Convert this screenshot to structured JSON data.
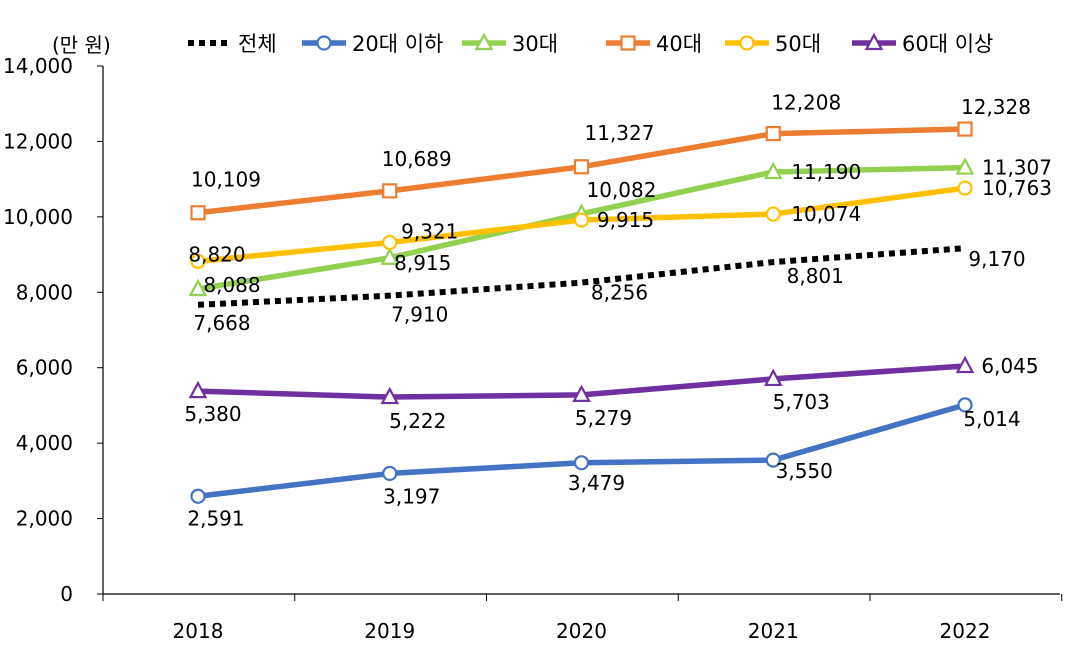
{
  "chart_data": {
    "type": "line",
    "title": "",
    "unit_label": "(만 원)",
    "xlabel": "",
    "ylabel": "",
    "x": [
      "2018",
      "2019",
      "2020",
      "2021",
      "2022"
    ],
    "ylim": [
      0,
      14000
    ],
    "yticks": [
      "0",
      "2,000",
      "4,000",
      "6,000",
      "8,000",
      "10,000",
      "12,000",
      "14,000"
    ],
    "ytick_values": [
      0,
      2000,
      4000,
      6000,
      8000,
      10000,
      12000,
      14000
    ],
    "grid": false,
    "legend_placement": "top",
    "series": [
      {
        "name": "전체",
        "color": "#000000",
        "marker": "none",
        "dashed": true,
        "values": [
          7668,
          7910,
          8256,
          8801,
          9170
        ],
        "labels": [
          "7,668",
          "7,910",
          "8,256",
          "8,801",
          "9,170"
        ]
      },
      {
        "name": "20대 이하",
        "color": "#4472C4",
        "marker": "circle",
        "values": [
          2591,
          3197,
          3479,
          3550,
          5014
        ],
        "labels": [
          "2,591",
          "3,197",
          "3,479",
          "3,550",
          "5,014"
        ]
      },
      {
        "name": "30대",
        "color": "#92D050",
        "marker": "triangle",
        "values": [
          8088,
          8915,
          10082,
          11190,
          11307
        ],
        "labels": [
          "8,088",
          "8,915",
          "10,082",
          "11,190",
          "11,307"
        ]
      },
      {
        "name": "40대",
        "color": "#ED7D31",
        "marker": "square",
        "values": [
          10109,
          10689,
          11327,
          12208,
          12328
        ],
        "labels": [
          "10,109",
          "10,689",
          "11,327",
          "12,208",
          "12,328"
        ]
      },
      {
        "name": "50대",
        "color": "#FFC000",
        "marker": "circle",
        "values": [
          8820,
          9321,
          9915,
          10074,
          10763
        ],
        "labels": [
          "8,820",
          "9,321",
          "9,915",
          "10,074",
          "10,763"
        ]
      },
      {
        "name": "60대 이상",
        "color": "#7030A0",
        "marker": "triangle",
        "values": [
          5380,
          5222,
          5279,
          5703,
          6045
        ],
        "labels": [
          "5,380",
          "5,222",
          "5,279",
          "5,703",
          "6,045"
        ]
      }
    ]
  }
}
